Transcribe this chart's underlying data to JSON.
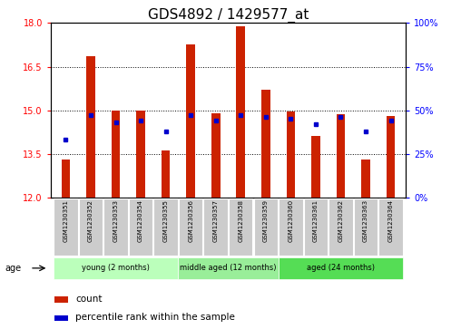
{
  "title": "GDS4892 / 1429577_at",
  "samples": [
    "GSM1230351",
    "GSM1230352",
    "GSM1230353",
    "GSM1230354",
    "GSM1230355",
    "GSM1230356",
    "GSM1230357",
    "GSM1230358",
    "GSM1230359",
    "GSM1230360",
    "GSM1230361",
    "GSM1230362",
    "GSM1230363",
    "GSM1230364"
  ],
  "count_values": [
    13.3,
    16.85,
    15.0,
    15.0,
    13.6,
    17.25,
    14.9,
    17.9,
    15.7,
    14.95,
    14.1,
    14.85,
    13.3,
    14.8
  ],
  "percentile_values": [
    33,
    47,
    43,
    44,
    38,
    47,
    44,
    47,
    46,
    45,
    42,
    46,
    38,
    44
  ],
  "ymin": 12,
  "ymax": 18,
  "yticks": [
    12,
    13.5,
    15,
    16.5,
    18
  ],
  "right_yticks": [
    0,
    25,
    50,
    75,
    100
  ],
  "groups": [
    {
      "label": "young (2 months)",
      "start": 0,
      "end": 5
    },
    {
      "label": "middle aged (12 months)",
      "start": 5,
      "end": 9
    },
    {
      "label": "aged (24 months)",
      "start": 9,
      "end": 14
    }
  ],
  "group_colors": [
    "#bbffbb",
    "#99ee99",
    "#55dd55"
  ],
  "bar_color": "#cc2200",
  "percentile_color": "#0000cc",
  "bg_color": "#ffffff",
  "label_box_color": "#cccccc",
  "title_fontsize": 11,
  "age_label": "age",
  "legend_count": "count",
  "legend_percentile": "percentile rank within the sample",
  "bar_width": 0.35
}
